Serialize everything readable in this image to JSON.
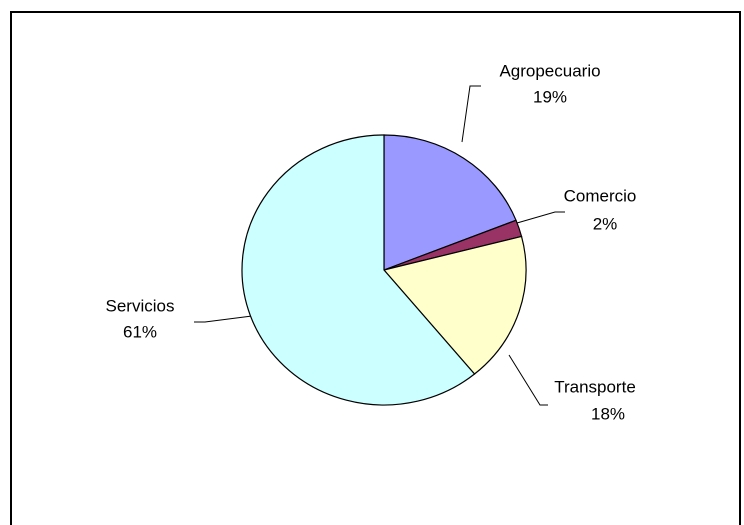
{
  "chart_data": {
    "type": "pie",
    "categories": [
      "Agropecuario",
      "Comercio",
      "Transporte",
      "Servicios"
    ],
    "values": [
      19,
      2,
      18,
      61
    ],
    "value_labels": [
      "19%",
      "2%",
      "18%",
      "61%"
    ],
    "colors": [
      "#9999ff",
      "#993366",
      "#ffffcc",
      "#ccffff"
    ]
  }
}
